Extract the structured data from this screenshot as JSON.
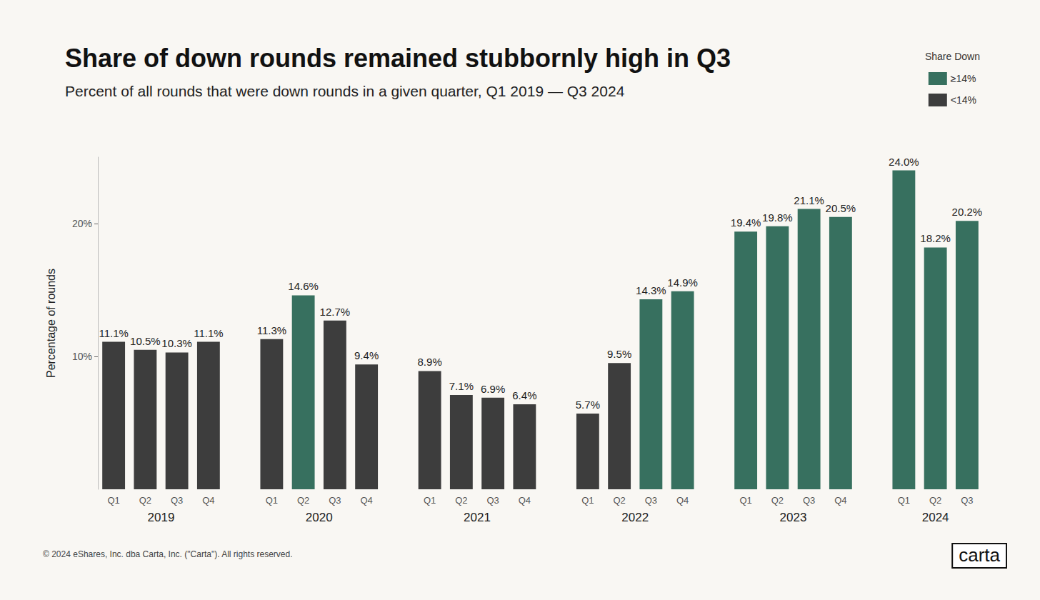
{
  "chart_data": {
    "type": "bar",
    "title": "Share of down rounds remained stubbornly high in Q3",
    "subtitle": "Percent of all rounds that were down rounds in a given quarter, Q1 2019 — Q3 2024",
    "y_label": "Percentage of rounds",
    "legend_title": "Share Down",
    "footer": "© 2024 eShares, Inc. dba Carta, Inc. (\"Carta\"). All rights reserved.",
    "logo": "carta",
    "categories": [
      "Q1",
      "Q2",
      "Q3",
      "Q4",
      null,
      "Q1",
      "Q2",
      "Q3",
      "Q4",
      null,
      "Q1",
      "Q2",
      "Q3",
      "Q4",
      null,
      "Q1",
      "Q2",
      "Q3",
      "Q4",
      null,
      "Q1",
      "Q2",
      "Q3",
      "Q4",
      null,
      "Q1",
      "Q2",
      "Q3"
    ],
    "years": [
      "2019",
      "2019",
      "2019",
      "2019",
      null,
      "2020",
      "2020",
      "2020",
      "2020",
      null,
      "2021",
      "2021",
      "2021",
      "2021",
      null,
      "2022",
      "2022",
      "2022",
      "2022",
      null,
      "2023",
      "2023",
      "2023",
      "2023",
      null,
      "2024",
      "2024",
      "2024"
    ],
    "series": [
      {
        "name": "≥14%",
        "color": "#37705f",
        "values": [
          null,
          null,
          null,
          null,
          null,
          null,
          14.6,
          null,
          null,
          null,
          null,
          null,
          null,
          null,
          null,
          null,
          null,
          14.3,
          14.9,
          null,
          19.4,
          19.8,
          21.1,
          20.5,
          null,
          24.0,
          18.2,
          20.2
        ],
        "value_labels": [
          null,
          null,
          null,
          null,
          null,
          null,
          "14.6%",
          null,
          null,
          null,
          null,
          null,
          null,
          null,
          null,
          null,
          null,
          "14.3%",
          "14.9%",
          null,
          "19.4%",
          "19.8%",
          "21.1%",
          "20.5%",
          null,
          "24.0%",
          "18.2%",
          "20.2%"
        ]
      },
      {
        "name": "<14%",
        "color": "#3d3d3d",
        "values": [
          11.1,
          10.5,
          10.3,
          11.1,
          null,
          11.3,
          null,
          12.7,
          9.4,
          null,
          8.9,
          7.1,
          6.9,
          6.4,
          null,
          5.7,
          9.5,
          null,
          null,
          null,
          null,
          null,
          null,
          null,
          null,
          null,
          null,
          null
        ],
        "value_labels": [
          "11.1%",
          "10.5%",
          "10.3%",
          "11.1%",
          null,
          "11.3%",
          null,
          "12.7%",
          "9.4%",
          null,
          "8.9%",
          "7.1%",
          "6.9%",
          "6.4%",
          null,
          "5.7%",
          "9.5%",
          null,
          null,
          null,
          null,
          null,
          null,
          null,
          null,
          null,
          null,
          null
        ]
      }
    ],
    "ylim": [
      0,
      25
    ],
    "yticks": [
      {
        "value": 10,
        "label": "10%"
      },
      {
        "value": 20,
        "label": "20%"
      }
    ],
    "grid": false,
    "legend": "top-right",
    "data_labels": true
  }
}
